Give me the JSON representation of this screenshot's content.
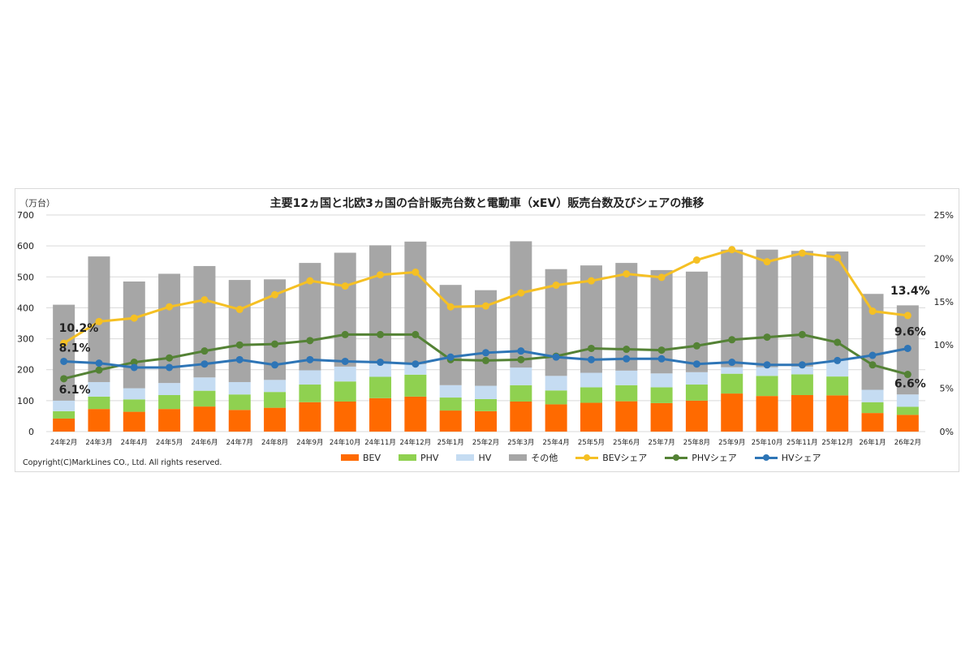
{
  "chart_data": {
    "type": "bar+line",
    "title": "主要12ヵ国と北欧3ヵ国の合計販売台数と電動車（xEV）販売台数及びシェアの推移",
    "ylabel": "（万台）",
    "ylim": [
      0,
      700
    ],
    "yticks": [
      "0",
      "100",
      "200",
      "300",
      "400",
      "500",
      "600",
      "700"
    ],
    "y2lim": [
      0,
      25
    ],
    "y2ticks": [
      "0%",
      "5%",
      "10%",
      "15%",
      "20%",
      "25%"
    ],
    "grid": true,
    "legend_position": "bottom",
    "categories": [
      "24年2月",
      "24年3月",
      "24年4月",
      "24年5月",
      "24年6月",
      "24年7月",
      "24年8月",
      "24年9月",
      "24年10月",
      "24年11月",
      "24年12月",
      "25年1月",
      "25年2月",
      "25年3月",
      "25年4月",
      "25年5月",
      "25年6月",
      "25年7月",
      "25年8月",
      "25年9月",
      "25年10月",
      "25年11月",
      "25年12月",
      "26年1月",
      "26年2月"
    ],
    "bar_series": [
      {
        "name": "BEV",
        "color": "#ff6a00",
        "values": [
          42,
          73,
          64,
          73,
          81,
          70,
          77,
          95,
          97,
          108,
          113,
          68,
          66,
          97,
          88,
          93,
          98,
          92,
          100,
          123,
          115,
          118,
          117,
          60,
          54
        ]
      },
      {
        "name": "PHV",
        "color": "#8fd150",
        "values": [
          24,
          40,
          40,
          45,
          51,
          50,
          51,
          57,
          65,
          69,
          71,
          42,
          39,
          53,
          45,
          50,
          52,
          51,
          52,
          64,
          65,
          67,
          61,
          35,
          26
        ]
      },
      {
        "name": "HV",
        "color": "#c5dcf2",
        "values": [
          34,
          47,
          36,
          39,
          43,
          40,
          39,
          46,
          48,
          43,
          34,
          40,
          43,
          57,
          47,
          47,
          47,
          45,
          40,
          21,
          28,
          25,
          52,
          40,
          40
        ]
      },
      {
        "name": "その他",
        "color": "#a6a6a6",
        "values": [
          310,
          406,
          345,
          353,
          360,
          330,
          325,
          347,
          368,
          382,
          396,
          324,
          309,
          408,
          345,
          347,
          348,
          334,
          325,
          380,
          380,
          374,
          352,
          310,
          288
        ]
      }
    ],
    "line_series": [
      {
        "name": "BEVシェア",
        "color": "#f5c024",
        "values": [
          10.2,
          12.7,
          13.1,
          14.4,
          15.2,
          14.1,
          15.8,
          17.4,
          16.8,
          18.1,
          18.4,
          14.4,
          14.5,
          16.0,
          16.9,
          17.4,
          18.2,
          17.8,
          19.8,
          21.0,
          19.6,
          20.6,
          20.1,
          13.9,
          13.4
        ]
      },
      {
        "name": "PHVシェア",
        "color": "#548235",
        "values": [
          6.1,
          7.1,
          8.0,
          8.5,
          9.3,
          10.0,
          10.1,
          10.5,
          11.2,
          11.2,
          11.2,
          8.3,
          8.2,
          8.3,
          8.7,
          9.6,
          9.5,
          9.4,
          9.9,
          10.6,
          10.9,
          11.2,
          10.3,
          7.7,
          6.6
        ]
      },
      {
        "name": "HVシェア",
        "color": "#2e75b6",
        "values": [
          8.1,
          7.9,
          7.4,
          7.4,
          7.8,
          8.3,
          7.7,
          8.3,
          8.1,
          8.0,
          7.8,
          8.6,
          9.1,
          9.3,
          8.6,
          8.3,
          8.4,
          8.4,
          7.8,
          8.0,
          7.7,
          7.7,
          8.2,
          8.8,
          9.6
        ]
      }
    ],
    "data_labels": [
      {
        "series": "BEVシェア",
        "category": "24年2月",
        "text": "10.2%"
      },
      {
        "series": "HVシェア",
        "category": "24年2月",
        "text": "8.1%"
      },
      {
        "series": "PHVシェア",
        "category": "24年2月",
        "text": "6.1%"
      },
      {
        "series": "BEVシェア",
        "category": "26年2月",
        "text": "13.4%"
      },
      {
        "series": "HVシェア",
        "category": "26年2月",
        "text": "9.6%"
      },
      {
        "series": "PHVシェア",
        "category": "26年2月",
        "text": "6.6%"
      }
    ]
  },
  "copyright": "Copyright(C)MarkLines CO., Ltd. All rights reserved."
}
